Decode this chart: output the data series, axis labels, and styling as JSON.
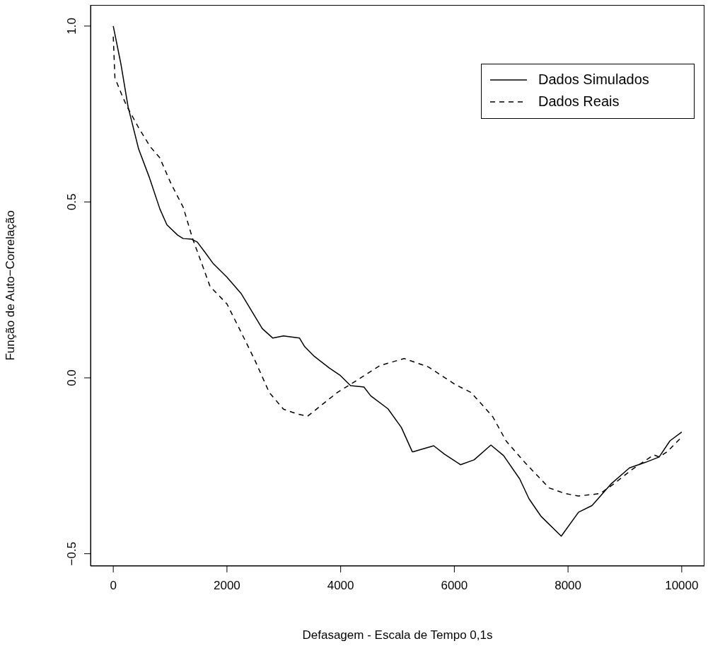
{
  "chart_data": {
    "type": "line",
    "xlabel": "Defasagem - Escala de Tempo 0,1s",
    "ylabel": "Função de Auto−Correlação",
    "xlim": [
      -400,
      10400
    ],
    "ylim": [
      -0.535,
      1.06
    ],
    "xticks": [
      0,
      2000,
      4000,
      6000,
      8000,
      10000
    ],
    "yticks": [
      {
        "value": -0.5,
        "label": "−0.5"
      },
      {
        "value": 0,
        "label": "0.0"
      },
      {
        "value": 0.5,
        "label": "0.5"
      },
      {
        "value": 1,
        "label": "1.0"
      }
    ],
    "legend": "top right",
    "marker": "none",
    "series": [
      {
        "name": "Dados Simulados",
        "color": "#000000",
        "line_style": "solid",
        "x": [
          0,
          137,
          261,
          447,
          634,
          820,
          944,
          1130,
          1230,
          1379,
          1478,
          1627,
          1752,
          2000,
          2248,
          2435,
          2621,
          2807,
          2994,
          3277,
          3366,
          3537,
          3801,
          3985,
          4174,
          4410,
          4528,
          4832,
          5068,
          5260,
          5275,
          5637,
          5826,
          6111,
          6348,
          6643,
          6866,
          7149,
          7314,
          7527,
          7881,
          8185,
          8422,
          8754,
          9081,
          9366,
          9603,
          9793,
          10000
        ],
        "values": [
          1.0,
          0.89,
          0.77,
          0.65,
          0.57,
          0.48,
          0.435,
          0.406,
          0.396,
          0.394,
          0.386,
          0.354,
          0.326,
          0.286,
          0.24,
          0.19,
          0.14,
          0.113,
          0.119,
          0.113,
          0.089,
          0.061,
          0.028,
          0.008,
          -0.022,
          -0.026,
          -0.051,
          -0.088,
          -0.141,
          -0.21,
          -0.21,
          -0.193,
          -0.217,
          -0.247,
          -0.233,
          -0.191,
          -0.221,
          -0.287,
          -0.344,
          -0.394,
          -0.45,
          -0.382,
          -0.363,
          -0.302,
          -0.256,
          -0.24,
          -0.225,
          -0.179,
          -0.154
        ]
      },
      {
        "name": "Dados Reais",
        "color": "#000000",
        "line_style": "dashed",
        "x": [
          0,
          29,
          149,
          236,
          443,
          646,
          816,
          1019,
          1230,
          1395,
          1561,
          1702,
          2000,
          2248,
          2497,
          2745,
          2994,
          3242,
          3419,
          3938,
          4316,
          4693,
          5118,
          5543,
          6016,
          6298,
          6677,
          6913,
          7242,
          7668,
          7950,
          8185,
          8565,
          8801,
          9130,
          9509,
          9603,
          9745,
          10000
        ],
        "values": [
          0.97,
          0.853,
          0.805,
          0.773,
          0.712,
          0.658,
          0.626,
          0.551,
          0.485,
          0.396,
          0.323,
          0.26,
          0.21,
          0.13,
          0.048,
          -0.042,
          -0.089,
          -0.103,
          -0.109,
          -0.042,
          -0.004,
          0.035,
          0.055,
          0.031,
          -0.019,
          -0.042,
          -0.111,
          -0.18,
          -0.241,
          -0.313,
          -0.329,
          -0.336,
          -0.329,
          -0.302,
          -0.26,
          -0.219,
          -0.225,
          -0.21,
          -0.168
        ]
      }
    ]
  }
}
